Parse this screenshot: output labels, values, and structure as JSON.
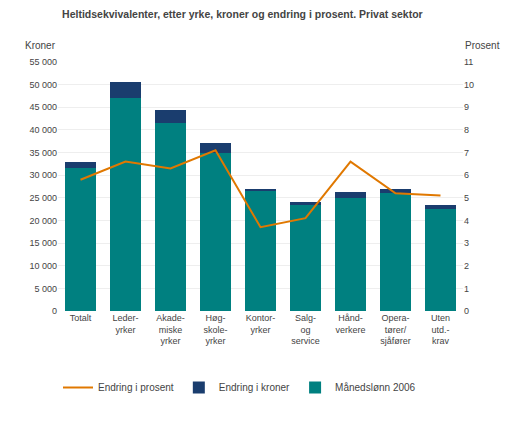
{
  "chart_data": {
    "type": "bar",
    "stacked": true,
    "title": "Heltidsekvivalenter, etter yrke, kroner og endring i prosent. Privat sektor",
    "ylabel": "Kroner",
    "y2label": "Prosent",
    "categories": [
      "Totalt",
      "Leder-\nyrker",
      "Akade-\nmiske\nyrker",
      "Høg-\nskole-\nyrker",
      "Kontor-\nyrker",
      "Salg-\nog\nservice",
      "Hånd-\nverkere",
      "Opera-\ntører/\nsjåfører",
      "Uten\nutd.-\nkrav"
    ],
    "series": [
      {
        "name": "Månedslønn 2006",
        "type": "bar",
        "color": "#008080",
        "values": [
          31500,
          47000,
          41500,
          35000,
          26500,
          23500,
          25000,
          26000,
          22500
        ]
      },
      {
        "name": "Endring i kroner",
        "type": "bar",
        "color": "#1a3d6e",
        "values": [
          1500,
          3500,
          3000,
          2000,
          500,
          500,
          1200,
          1000,
          1000
        ]
      },
      {
        "name": "Endring i prosent",
        "type": "line",
        "axis": "y2",
        "color": "#e07800",
        "values": [
          5.8,
          6.6,
          6.3,
          7.1,
          3.7,
          4.1,
          6.6,
          5.2,
          5.1
        ]
      }
    ],
    "ylim": [
      0,
      55000
    ],
    "yticks": [
      0,
      {
        "value": 5000,
        "label": "5 000"
      },
      {
        "value": 10000,
        "label": "10 000"
      },
      {
        "value": 15000,
        "label": "15 000"
      },
      {
        "value": 20000,
        "label": "20 000"
      },
      {
        "value": 25000,
        "label": "25 000"
      },
      {
        "value": 30000,
        "label": "30 000"
      },
      {
        "value": 35000,
        "label": "35 000"
      },
      {
        "value": 40000,
        "label": "40 000"
      },
      {
        "value": 45000,
        "label": "45 000"
      },
      {
        "value": 50000,
        "label": "50 000"
      },
      {
        "value": 55000,
        "label": "55 000"
      }
    ],
    "y2lim": [
      0,
      11
    ],
    "y2ticks": [
      0,
      1,
      2,
      3,
      4,
      5,
      6,
      7,
      8,
      9,
      10,
      11
    ],
    "grid": true,
    "legend": "bottom"
  }
}
